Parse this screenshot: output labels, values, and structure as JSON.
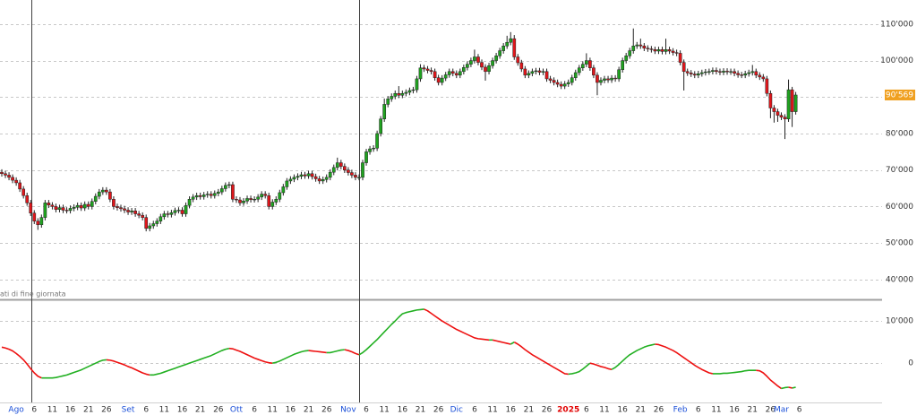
{
  "chart_data": {
    "type": "candlestick",
    "note": "ati di fine giornata",
    "up_color": "#1fa31f",
    "down_color": "#e0161b",
    "grid": true,
    "month_label_color": "#1a4fd8",
    "year_label_color": "#e00000",
    "ylim": [
      34800,
      116600
    ],
    "yticks": [
      {
        "value": 40000,
        "label": "40'000"
      },
      {
        "value": 50000,
        "label": "50'000"
      },
      {
        "value": 60000,
        "label": "60'000"
      },
      {
        "value": 70000,
        "label": "70'000"
      },
      {
        "value": 80000,
        "label": "80'000"
      },
      {
        "value": 90000,
        "label": "90'000"
      },
      {
        "value": 100000,
        "label": "100'000"
      },
      {
        "value": 110000,
        "label": "110'000"
      }
    ],
    "last_price": {
      "value": 90569,
      "label": "90'569",
      "color": "#f0a020"
    },
    "categories": [
      null,
      null,
      null,
      null,
      "Ago",
      null,
      null,
      null,
      null,
      "6",
      null,
      null,
      null,
      null,
      "11",
      null,
      null,
      null,
      null,
      "16",
      null,
      null,
      null,
      null,
      "21",
      null,
      null,
      null,
      null,
      "26",
      null,
      null,
      null,
      null,
      null,
      "Set",
      null,
      null,
      null,
      null,
      "6",
      null,
      null,
      null,
      null,
      "11",
      null,
      null,
      null,
      null,
      "16",
      null,
      null,
      null,
      null,
      "21",
      null,
      null,
      null,
      null,
      "26",
      null,
      null,
      null,
      null,
      "Ott",
      null,
      null,
      null,
      null,
      "6",
      null,
      null,
      null,
      null,
      "11",
      null,
      null,
      null,
      null,
      "16",
      null,
      null,
      null,
      null,
      "21",
      null,
      null,
      null,
      null,
      "26",
      null,
      null,
      null,
      null,
      null,
      "Nov",
      null,
      null,
      null,
      null,
      "6",
      null,
      null,
      null,
      null,
      "11",
      null,
      null,
      null,
      null,
      "16",
      null,
      null,
      null,
      null,
      "21",
      null,
      null,
      null,
      null,
      "26",
      null,
      null,
      null,
      null,
      "Dic",
      null,
      null,
      null,
      null,
      "6",
      null,
      null,
      null,
      null,
      "11",
      null,
      null,
      null,
      null,
      "16",
      null,
      null,
      null,
      null,
      "21",
      null,
      null,
      null,
      null,
      "26",
      null,
      null,
      null,
      null,
      null,
      "2025",
      null,
      null,
      null,
      null,
      "6",
      null,
      null,
      null,
      null,
      "11",
      null,
      null,
      null,
      null,
      "16",
      null,
      null,
      null,
      null,
      "21",
      null,
      null,
      null,
      null,
      "26",
      null,
      null,
      null,
      null,
      null,
      "Feb",
      null,
      null,
      null,
      null,
      "6",
      null,
      null,
      null,
      null,
      "11",
      null,
      null,
      null,
      null,
      "16",
      null,
      null,
      null,
      null,
      "21",
      null,
      null,
      null,
      null,
      "26",
      null,
      null,
      "Mar",
      null,
      null,
      null,
      null,
      "6"
    ],
    "open": [
      69400,
      69000,
      68600,
      68000,
      67200,
      66500,
      64800,
      63000,
      61000,
      58200,
      56000,
      55000,
      57000,
      61000,
      60400,
      60000,
      59200,
      59700,
      59000,
      58900,
      59500,
      59800,
      60300,
      59600,
      60600,
      60000,
      61400,
      62800,
      64000,
      64500,
      64000,
      62000,
      60000,
      59700,
      59400,
      59000,
      58500,
      58800,
      58000,
      57600,
      57000,
      54000,
      54700,
      55300,
      56000,
      57200,
      58000,
      57800,
      58300,
      58900,
      59000,
      58000,
      60300,
      62000,
      62600,
      63000,
      62700,
      63200,
      63400,
      63000,
      63600,
      64000,
      64900,
      65800,
      66000,
      62000,
      61800,
      61000,
      61500,
      62200,
      61900,
      62000,
      62600,
      63400,
      63000,
      60000,
      61200,
      62000,
      63800,
      65400,
      67000,
      67500,
      68000,
      68300,
      68700,
      68400,
      69000,
      68200,
      67600,
      67000,
      67400,
      68000,
      69400,
      70700,
      72000,
      71000,
      70000,
      69300,
      68600,
      68000,
      68000,
      72000,
      75000,
      75800,
      76000,
      80000,
      84000,
      88000,
      89500,
      90200,
      91000,
      90500,
      91000,
      91300,
      91800,
      92000,
      95000,
      98000,
      97700,
      97300,
      97000,
      95300,
      94000,
      95200,
      96100,
      97000,
      96500,
      96000,
      97000,
      98100,
      99000,
      100000,
      101000,
      99500,
      98200,
      97000,
      98600,
      100000,
      101300,
      102700,
      104000,
      105000,
      106000,
      101000,
      99400,
      97700,
      96000,
      96500,
      97000,
      97200,
      96800,
      97000,
      95000,
      94600,
      94000,
      93500,
      93000,
      93600,
      94000,
      95300,
      96700,
      98000,
      99000,
      100000,
      98000,
      96000,
      94000,
      94600,
      95000,
      94700,
      95200,
      95000,
      97500,
      100000,
      101300,
      102700,
      104000,
      104300,
      104000,
      103400,
      103200,
      103000,
      102600,
      103000,
      102500,
      103000,
      102600,
      102200,
      102000,
      99500,
      97000,
      96600,
      96300,
      96000,
      96400,
      96700,
      96900,
      97000,
      97300,
      97000,
      96800,
      97100,
      96900,
      97000,
      96500,
      96100,
      96000,
      96400,
      96700,
      97000,
      96000,
      95500,
      95000,
      91000,
      87000,
      86000,
      85000,
      84500,
      84000,
      92000,
      86000,
      null
    ],
    "high": [
      70200,
      69800,
      69400,
      68800,
      68000,
      67300,
      65600,
      63800,
      61800,
      59000,
      56800,
      57800,
      61800,
      61800,
      61200,
      60800,
      60500,
      60500,
      59800,
      60300,
      60600,
      61100,
      61100,
      61400,
      61400,
      62200,
      63600,
      64800,
      65300,
      65300,
      64800,
      62800,
      60800,
      60500,
      60200,
      59800,
      59600,
      59600,
      58800,
      58400,
      57800,
      55500,
      56100,
      56800,
      58000,
      58800,
      58800,
      59100,
      59700,
      59800,
      59800,
      61100,
      62800,
      63400,
      63800,
      63800,
      64000,
      64200,
      64200,
      64400,
      64800,
      65700,
      66600,
      66800,
      66800,
      62800,
      62600,
      62300,
      63000,
      63000,
      62800,
      63400,
      64200,
      64200,
      63800,
      62000,
      62800,
      64600,
      66200,
      67800,
      68300,
      68800,
      69100,
      69500,
      69500,
      69800,
      69800,
      69000,
      68400,
      68200,
      68800,
      70200,
      71500,
      73400,
      72800,
      71800,
      70800,
      70100,
      69400,
      68800,
      72800,
      75800,
      76600,
      76800,
      80800,
      84800,
      89600,
      90300,
      91000,
      91800,
      93000,
      91800,
      92100,
      92600,
      92800,
      95800,
      99000,
      98800,
      98500,
      98100,
      97800,
      96100,
      96000,
      96900,
      97800,
      97800,
      97300,
      97800,
      98900,
      99800,
      100800,
      103000,
      101800,
      100300,
      99000,
      99400,
      100800,
      102100,
      103500,
      104800,
      106800,
      107800,
      107000,
      101800,
      100200,
      98500,
      97300,
      97800,
      98000,
      98000,
      97800,
      97800,
      95800,
      95400,
      94800,
      94300,
      94400,
      94800,
      96100,
      97500,
      98800,
      99800,
      102000,
      100800,
      98800,
      96800,
      95400,
      95800,
      95800,
      96000,
      96000,
      98300,
      100800,
      102100,
      103500,
      108800,
      105100,
      106000,
      104800,
      104200,
      104000,
      103800,
      103800,
      103800,
      106000,
      103800,
      103400,
      103000,
      102800,
      100300,
      97800,
      97400,
      97100,
      97200,
      97500,
      97700,
      97800,
      98100,
      98100,
      97800,
      97900,
      97900,
      97800,
      97800,
      97300,
      96900,
      97200,
      97500,
      98800,
      97800,
      96800,
      96300,
      95800,
      91800,
      87800,
      86800,
      85800,
      85300,
      94800,
      92800,
      91400,
      null
    ],
    "low": [
      68200,
      67800,
      67200,
      66400,
      65700,
      64000,
      62200,
      60200,
      57400,
      55200,
      53600,
      54200,
      56200,
      59600,
      59200,
      58400,
      58400,
      58200,
      58100,
      58100,
      58700,
      59000,
      58800,
      58800,
      59200,
      59200,
      60600,
      62000,
      63200,
      63200,
      61200,
      59200,
      58900,
      58600,
      58200,
      57700,
      57700,
      57200,
      56800,
      56200,
      53200,
      53200,
      53900,
      54500,
      55200,
      56400,
      57000,
      57000,
      57500,
      58100,
      57200,
      57200,
      59500,
      61200,
      61800,
      61900,
      61900,
      62400,
      62200,
      62200,
      62800,
      63200,
      64100,
      65000,
      61200,
      61000,
      60200,
      60200,
      60700,
      61100,
      61100,
      61200,
      61800,
      62200,
      59200,
      59200,
      60400,
      61200,
      63000,
      64600,
      66200,
      66700,
      67200,
      67500,
      67600,
      67600,
      67400,
      66800,
      66200,
      66200,
      66600,
      67200,
      68600,
      69900,
      70200,
      69200,
      68500,
      67800,
      67200,
      67200,
      67200,
      71200,
      74200,
      75000,
      75200,
      79200,
      83200,
      87200,
      88700,
      89400,
      89700,
      89700,
      90200,
      90500,
      91000,
      91200,
      94200,
      96900,
      96500,
      96200,
      94500,
      93200,
      93200,
      94400,
      95300,
      95700,
      95200,
      95200,
      96200,
      97300,
      98200,
      99200,
      98700,
      97400,
      94500,
      96200,
      97800,
      99200,
      100500,
      101900,
      103200,
      104200,
      100200,
      98600,
      96900,
      95200,
      95200,
      95700,
      96200,
      96000,
      96000,
      94200,
      93800,
      93200,
      92700,
      92200,
      92200,
      92800,
      93200,
      94500,
      95900,
      97200,
      98200,
      97200,
      95200,
      90500,
      93200,
      93800,
      93900,
      93900,
      94200,
      94200,
      96700,
      99200,
      100500,
      101900,
      103200,
      103200,
      102600,
      102400,
      102200,
      101800,
      101800,
      101700,
      101700,
      101800,
      101400,
      101200,
      98700,
      91800,
      95800,
      95500,
      95200,
      95200,
      95600,
      95900,
      96100,
      96200,
      96200,
      96000,
      96000,
      96100,
      96100,
      95700,
      95300,
      95200,
      95200,
      95600,
      95900,
      95200,
      94700,
      94200,
      90200,
      84200,
      83000,
      83200,
      83700,
      78500,
      83200,
      81800,
      85200,
      null
    ],
    "close": [
      69000,
      68600,
      68000,
      67200,
      66500,
      64800,
      63000,
      61000,
      58200,
      56000,
      55000,
      57000,
      61000,
      60400,
      60000,
      59200,
      59700,
      59000,
      58900,
      59500,
      59800,
      60300,
      59600,
      60600,
      60000,
      61400,
      62800,
      64000,
      64500,
      64000,
      62000,
      60000,
      59700,
      59400,
      59000,
      58500,
      58800,
      58000,
      57600,
      57000,
      54000,
      54700,
      55300,
      56000,
      57200,
      58000,
      57800,
      58300,
      58900,
      59000,
      58000,
      60300,
      62000,
      62600,
      63000,
      62700,
      63200,
      63400,
      63000,
      63600,
      64000,
      64900,
      65800,
      66000,
      62000,
      61800,
      61000,
      61500,
      62200,
      61900,
      62000,
      62600,
      63400,
      63000,
      60000,
      61200,
      62000,
      63800,
      65400,
      67000,
      67500,
      68000,
      68300,
      68700,
      68400,
      69000,
      68200,
      67600,
      67000,
      67400,
      68000,
      69400,
      70700,
      72000,
      71000,
      70000,
      69300,
      68600,
      68000,
      68000,
      72000,
      75000,
      75800,
      76000,
      80000,
      84000,
      88000,
      89500,
      90200,
      91000,
      90500,
      91000,
      91300,
      91800,
      92000,
      95000,
      98000,
      97700,
      97300,
      97000,
      95300,
      94000,
      95200,
      96100,
      97000,
      96500,
      96000,
      97000,
      98100,
      99000,
      100000,
      101000,
      99500,
      98200,
      97000,
      98600,
      100000,
      101300,
      102700,
      104000,
      105000,
      106000,
      101000,
      99400,
      97700,
      96000,
      96500,
      97000,
      97200,
      96800,
      97000,
      95000,
      94600,
      94000,
      93500,
      93000,
      93600,
      94000,
      95300,
      96700,
      98000,
      99000,
      100000,
      98000,
      96000,
      94000,
      94600,
      95000,
      94700,
      95200,
      95000,
      97500,
      100000,
      101300,
      102700,
      104000,
      104300,
      104000,
      103400,
      103200,
      103000,
      102600,
      103000,
      102500,
      103000,
      102600,
      102200,
      102000,
      99500,
      97000,
      96600,
      96300,
      96000,
      96400,
      96700,
      96900,
      97000,
      97300,
      97000,
      96800,
      97100,
      96900,
      97000,
      96500,
      96100,
      96000,
      96400,
      96700,
      97000,
      96000,
      95500,
      95000,
      91000,
      87000,
      86000,
      85000,
      84500,
      84000,
      92000,
      86000,
      90569,
      null
    ],
    "indicator": {
      "type": "line",
      "up_color": "#22b022",
      "down_color": "#ee1111",
      "ylim": [
        -9100,
        14700
      ],
      "yticks": [
        0,
        {
          "value": 10000,
          "label": "10'000"
        }
      ],
      "values": [
        3800,
        3600,
        3300,
        2900,
        2300,
        1600,
        800,
        -200,
        -1300,
        -2300,
        -3100,
        -3500,
        -3500,
        -3500,
        -3500,
        -3400,
        -3200,
        -3000,
        -2800,
        -2500,
        -2200,
        -1900,
        -1600,
        -1200,
        -800,
        -400,
        0,
        400,
        700,
        800,
        700,
        500,
        200,
        -100,
        -400,
        -800,
        -1100,
        -1500,
        -1900,
        -2300,
        -2600,
        -2800,
        -2800,
        -2600,
        -2400,
        -2100,
        -1800,
        -1500,
        -1200,
        -900,
        -600,
        -300,
        0,
        300,
        600,
        900,
        1200,
        1500,
        1800,
        2200,
        2600,
        3000,
        3300,
        3500,
        3400,
        3100,
        2800,
        2400,
        2000,
        1600,
        1200,
        900,
        600,
        300,
        100,
        0,
        200,
        500,
        900,
        1300,
        1700,
        2100,
        2400,
        2700,
        2900,
        3000,
        2900,
        2800,
        2700,
        2600,
        2500,
        2500,
        2700,
        2900,
        3100,
        3200,
        3000,
        2700,
        2300,
        2000,
        2500,
        3200,
        4000,
        4800,
        5600,
        6500,
        7400,
        8300,
        9200,
        10000,
        10900,
        11700,
        12000,
        12200,
        12400,
        12600,
        12700,
        12800,
        12400,
        11800,
        11200,
        10600,
        10000,
        9500,
        9000,
        8500,
        8000,
        7600,
        7200,
        6800,
        6400,
        6000,
        5800,
        5700,
        5600,
        5500,
        5500,
        5300,
        5100,
        4900,
        4700,
        4500,
        5000,
        4500,
        3900,
        3200,
        2600,
        2000,
        1500,
        1000,
        500,
        0,
        -500,
        -1000,
        -1500,
        -2000,
        -2500,
        -2600,
        -2500,
        -2300,
        -2000,
        -1400,
        -700,
        0,
        -200,
        -500,
        -800,
        -1000,
        -1300,
        -1500,
        -1000,
        -300,
        500,
        1300,
        2000,
        2500,
        3000,
        3400,
        3800,
        4100,
        4300,
        4500,
        4400,
        4100,
        3800,
        3400,
        3000,
        2500,
        1900,
        1300,
        700,
        100,
        -500,
        -1000,
        -1500,
        -1900,
        -2300,
        -2500,
        -2500,
        -2500,
        -2400,
        -2400,
        -2300,
        -2200,
        -2100,
        -2000,
        -1800,
        -1700,
        -1700,
        -1700,
        -1800,
        -2300,
        -3100,
        -4000,
        -4700,
        -5400,
        -6000,
        -5800,
        -5700,
        -5900,
        -5700,
        null
      ]
    }
  }
}
